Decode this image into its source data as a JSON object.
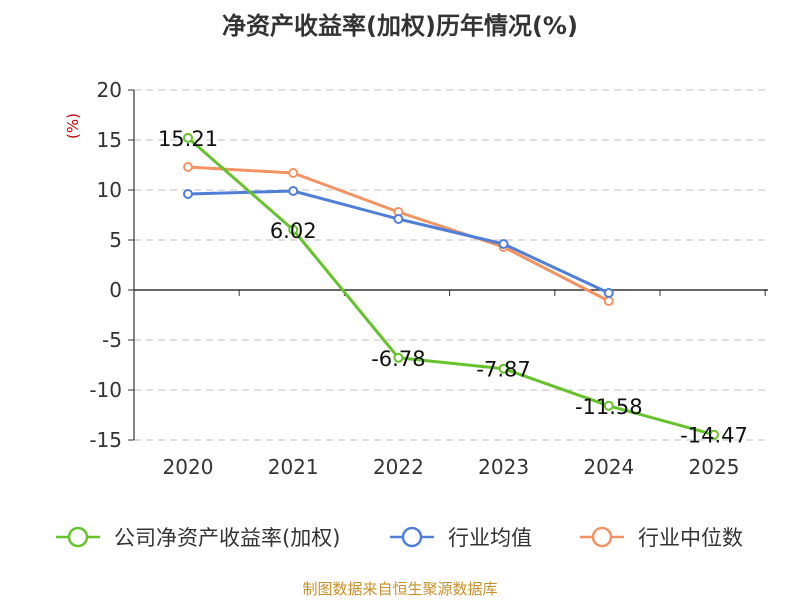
{
  "title": "净资产收益率(加权)历年情况(%)",
  "source": "制图数据来自恒生聚源数据库",
  "chart_data": {
    "type": "line",
    "title": "净资产收益率(加权)历年情况(%)",
    "xlabel": "",
    "ylabel": "(%)",
    "categories": [
      "2020",
      "2021",
      "2022",
      "2023",
      "2024",
      "2025"
    ],
    "ylim": [
      -15,
      20
    ],
    "yticks": [
      20,
      15,
      10,
      5,
      0,
      -5,
      -10,
      -15
    ],
    "grid": true,
    "legend_position": "bottom",
    "series": [
      {
        "name": "公司净资产收益率(加权)",
        "color": "#66c22a",
        "values": [
          15.21,
          6.02,
          -6.78,
          -7.87,
          -11.58,
          -14.47
        ],
        "labels": [
          "15.21",
          "6.02",
          "-6.78",
          "-7.87",
          "-11.58",
          "-14.47"
        ]
      },
      {
        "name": "行业均值",
        "color": "#4f7fd8",
        "values": [
          9.6,
          9.9,
          7.1,
          4.6,
          -0.3,
          null
        ]
      },
      {
        "name": "行业中位数",
        "color": "#f49362",
        "values": [
          12.3,
          11.7,
          7.8,
          4.3,
          -1.1,
          null
        ]
      }
    ]
  }
}
